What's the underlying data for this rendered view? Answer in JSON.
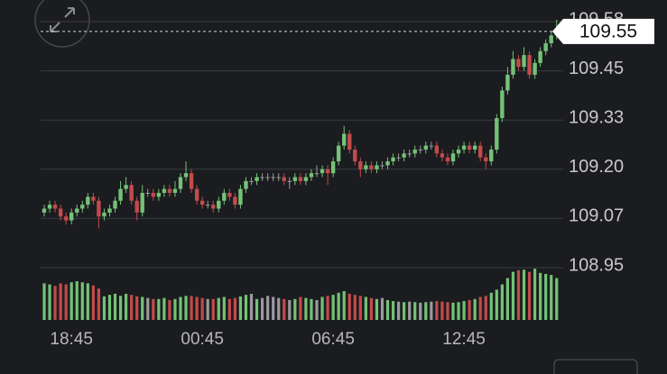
{
  "chart_data": {
    "type": "candlestick",
    "categories": [
      null,
      null,
      null,
      null,
      null,
      "18:45",
      null,
      null,
      null,
      null,
      null,
      null,
      null,
      null,
      null,
      null,
      null,
      null,
      null,
      null,
      null,
      null,
      null,
      null,
      null,
      null,
      null,
      null,
      null,
      "00:45",
      null,
      null,
      null,
      null,
      null,
      null,
      null,
      null,
      null,
      null,
      null,
      null,
      null,
      null,
      null,
      null,
      null,
      null,
      null,
      null,
      null,
      null,
      null,
      "06:45",
      null,
      null,
      null,
      null,
      null,
      null,
      null,
      null,
      null,
      null,
      null,
      null,
      null,
      null,
      null,
      null,
      null,
      null,
      null,
      null,
      null,
      null,
      null,
      "12:45",
      null,
      null,
      null,
      null,
      null,
      null,
      null,
      null,
      null,
      null,
      null,
      null,
      null,
      null,
      null,
      null,
      null
    ],
    "open": [
      109.09,
      109.1,
      109.11,
      109.1,
      109.08,
      109.07,
      109.09,
      109.1,
      109.11,
      109.13,
      109.12,
      109.08,
      109.09,
      109.1,
      109.12,
      109.15,
      109.16,
      109.12,
      109.09,
      109.14,
      109.14,
      109.13,
      109.14,
      109.15,
      109.14,
      109.15,
      109.18,
      109.19,
      109.15,
      109.12,
      109.11,
      109.11,
      109.1,
      109.12,
      109.14,
      109.13,
      109.11,
      109.15,
      109.17,
      109.17,
      109.18,
      109.18,
      109.18,
      109.18,
      109.18,
      109.17,
      109.17,
      109.18,
      109.17,
      109.18,
      109.19,
      109.19,
      109.2,
      109.19,
      109.22,
      109.26,
      109.29,
      109.25,
      109.22,
      109.2,
      109.21,
      109.2,
      109.21,
      109.21,
      109.22,
      109.23,
      109.23,
      109.24,
      109.24,
      109.25,
      109.25,
      109.26,
      109.26,
      109.24,
      109.23,
      109.22,
      109.24,
      109.25,
      109.26,
      109.25,
      109.26,
      109.23,
      109.22,
      109.25,
      109.33,
      109.4,
      109.44,
      109.48,
      109.46,
      109.49,
      109.44,
      109.47,
      109.5,
      109.52,
      109.54
    ],
    "high": [
      109.11,
      109.12,
      109.12,
      109.11,
      109.09,
      109.1,
      109.11,
      109.12,
      109.14,
      109.14,
      109.13,
      109.1,
      109.11,
      109.13,
      109.17,
      109.18,
      109.17,
      109.13,
      109.16,
      109.15,
      109.15,
      109.15,
      109.16,
      109.16,
      109.17,
      109.19,
      109.22,
      109.2,
      109.16,
      109.13,
      109.12,
      109.12,
      109.13,
      109.15,
      109.15,
      109.14,
      109.16,
      109.18,
      109.18,
      109.19,
      109.19,
      109.19,
      109.19,
      109.19,
      109.19,
      109.18,
      109.19,
      109.19,
      109.19,
      109.2,
      109.21,
      109.21,
      109.21,
      109.23,
      109.27,
      109.31,
      109.3,
      109.26,
      109.23,
      109.22,
      109.22,
      109.22,
      109.22,
      109.23,
      109.24,
      109.24,
      109.25,
      109.25,
      109.26,
      109.26,
      109.27,
      109.27,
      109.27,
      109.25,
      109.24,
      109.25,
      109.26,
      109.27,
      109.27,
      109.27,
      109.27,
      109.24,
      109.26,
      109.34,
      109.41,
      109.46,
      109.5,
      109.49,
      109.51,
      109.5,
      109.48,
      109.51,
      109.53,
      109.55,
      109.58
    ],
    "low": [
      109.08,
      109.09,
      109.09,
      109.07,
      109.06,
      109.06,
      109.08,
      109.09,
      109.1,
      109.11,
      109.05,
      109.07,
      109.08,
      109.09,
      109.11,
      109.14,
      109.11,
      109.07,
      109.08,
      109.13,
      109.12,
      109.12,
      109.13,
      109.13,
      109.13,
      109.14,
      109.17,
      109.14,
      109.11,
      109.1,
      109.1,
      109.09,
      109.09,
      109.11,
      109.12,
      109.1,
      109.1,
      109.14,
      109.16,
      109.16,
      109.17,
      109.17,
      109.17,
      109.17,
      109.16,
      109.15,
      109.16,
      109.16,
      109.16,
      109.17,
      109.18,
      109.18,
      109.16,
      109.18,
      109.21,
      109.25,
      109.24,
      109.21,
      109.18,
      109.19,
      109.19,
      109.19,
      109.2,
      109.2,
      109.21,
      109.22,
      109.22,
      109.23,
      109.23,
      109.24,
      109.24,
      109.25,
      109.23,
      109.22,
      109.21,
      109.21,
      109.23,
      109.24,
      109.24,
      109.24,
      109.22,
      109.2,
      109.21,
      109.24,
      109.32,
      109.39,
      109.43,
      109.45,
      109.45,
      109.43,
      109.43,
      109.46,
      109.49,
      109.51,
      109.53
    ],
    "close": [
      109.1,
      109.11,
      109.1,
      109.08,
      109.07,
      109.09,
      109.1,
      109.11,
      109.13,
      109.12,
      109.08,
      109.09,
      109.1,
      109.12,
      109.15,
      109.16,
      109.12,
      109.09,
      109.14,
      109.14,
      109.13,
      109.14,
      109.15,
      109.14,
      109.15,
      109.18,
      109.19,
      109.15,
      109.12,
      109.11,
      109.11,
      109.1,
      109.12,
      109.14,
      109.13,
      109.11,
      109.15,
      109.17,
      109.17,
      109.18,
      109.18,
      109.18,
      109.18,
      109.18,
      109.17,
      109.17,
      109.18,
      109.17,
      109.18,
      109.19,
      109.19,
      109.2,
      109.19,
      109.22,
      109.26,
      109.29,
      109.25,
      109.22,
      109.2,
      109.21,
      109.2,
      109.21,
      109.21,
      109.22,
      109.23,
      109.23,
      109.24,
      109.24,
      109.25,
      109.25,
      109.26,
      109.26,
      109.24,
      109.23,
      109.22,
      109.24,
      109.25,
      109.26,
      109.25,
      109.26,
      109.23,
      109.22,
      109.25,
      109.33,
      109.4,
      109.44,
      109.48,
      109.46,
      109.49,
      109.44,
      109.47,
      109.5,
      109.52,
      109.54,
      109.55
    ],
    "volume": [
      70,
      68,
      65,
      70,
      68,
      72,
      74,
      72,
      70,
      66,
      60,
      45,
      48,
      50,
      46,
      50,
      48,
      45,
      44,
      42,
      40,
      40,
      42,
      38,
      40,
      44,
      46,
      46,
      44,
      42,
      40,
      40,
      42,
      44,
      40,
      42,
      45,
      48,
      50,
      40,
      42,
      46,
      44,
      42,
      40,
      38,
      40,
      44,
      42,
      40,
      38,
      44,
      46,
      48,
      52,
      55,
      50,
      48,
      46,
      44,
      42,
      40,
      42,
      38,
      36,
      35,
      34,
      35,
      34,
      33,
      34,
      35,
      36,
      35,
      34,
      33,
      34,
      36,
      38,
      40,
      44,
      46,
      52,
      58,
      68,
      80,
      92,
      95,
      96,
      92,
      98,
      90,
      88,
      86,
      80
    ],
    "ylim": [
      108.95,
      109.575
    ],
    "yticks": [
      {
        "value": 109.575,
        "label": "109.58"
      },
      109.45,
      {
        "value": 109.325,
        "label": "109.33"
      },
      {
        "value": 109.2,
        "label": "109.20"
      },
      {
        "value": 109.075,
        "label": "109.07"
      },
      108.95
    ],
    "y2lim": [
      0,
      100
    ],
    "grid": true,
    "up_color": "#74c277",
    "down_color": "#c24b4b",
    "flat_color": "#9a9a9e"
  }
}
